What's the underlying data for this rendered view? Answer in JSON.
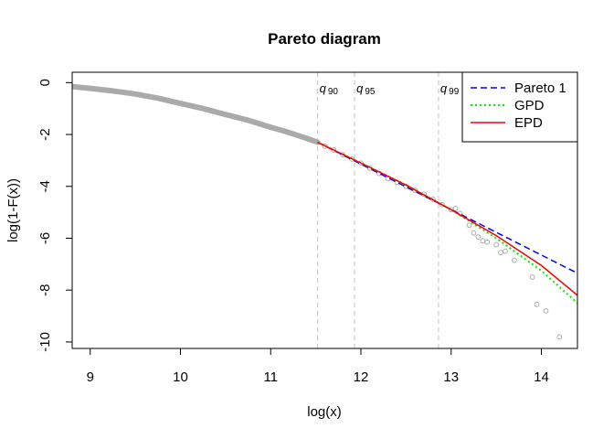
{
  "chart_data": {
    "type": "line",
    "title": "Pareto diagram",
    "xlabel": "log(x)",
    "ylabel": "log(1-F(x))",
    "xlim": [
      8.8,
      14.4
    ],
    "ylim": [
      -10.25,
      0.4
    ],
    "xticks": [
      9,
      10,
      11,
      12,
      13,
      14
    ],
    "yticks": [
      0,
      -2,
      -4,
      -6,
      -8,
      -10
    ],
    "grid": false,
    "legend_position": "top-right",
    "colors": {
      "empirical": "#aaaaaa",
      "quantile_lines": "#cccccc",
      "pareto1": "#0000ff",
      "gpd": "#00ee00",
      "epd": "#ff0000"
    },
    "empirical_curve": {
      "x": [
        8.8,
        9.0,
        9.25,
        9.5,
        9.75,
        10.0,
        10.25,
        10.5,
        10.75,
        11.0,
        11.2,
        11.4,
        11.52
      ],
      "y": [
        -0.15,
        -0.22,
        -0.32,
        -0.44,
        -0.6,
        -0.8,
        -1.0,
        -1.23,
        -1.45,
        -1.72,
        -1.92,
        -2.15,
        -2.3
      ]
    },
    "empirical_points": {
      "x": [
        11.6,
        11.7,
        11.8,
        11.9,
        12.0,
        12.1,
        12.2,
        12.3,
        12.4,
        12.5,
        12.6,
        12.7,
        12.8,
        12.9,
        13.0,
        13.05,
        13.1,
        13.2,
        13.25,
        13.3,
        13.35,
        13.4,
        13.5,
        13.55,
        13.6,
        13.7,
        13.9,
        13.95,
        14.05,
        14.2
      ],
      "y": [
        -2.45,
        -2.6,
        -2.78,
        -2.95,
        -3.1,
        -3.3,
        -3.5,
        -3.7,
        -3.85,
        -4.0,
        -4.15,
        -4.3,
        -4.5,
        -4.7,
        -4.9,
        -4.85,
        -5.05,
        -5.5,
        -5.8,
        -5.95,
        -6.1,
        -6.15,
        -6.25,
        -6.55,
        -6.5,
        -6.85,
        -7.5,
        -8.55,
        -8.8,
        -9.8
      ]
    },
    "series": [
      {
        "name": "Pareto 1",
        "x": [
          11.52,
          14.4
        ],
        "y": [
          -2.3,
          -7.35
        ]
      },
      {
        "name": "GPD",
        "x": [
          11.52,
          12.0,
          12.5,
          13.0,
          13.5,
          14.0,
          14.4
        ],
        "y": [
          -2.3,
          -3.1,
          -3.95,
          -4.9,
          -6.0,
          -7.25,
          -8.5
        ]
      },
      {
        "name": "EPD",
        "x": [
          11.52,
          12.0,
          12.5,
          13.0,
          13.5,
          14.0,
          14.4
        ],
        "y": [
          -2.3,
          -3.1,
          -3.95,
          -4.9,
          -5.9,
          -7.05,
          -8.2
        ]
      }
    ],
    "quantile_lines": [
      {
        "label": "q",
        "sub": "90",
        "x": 11.52
      },
      {
        "label": "q",
        "sub": "95",
        "x": 11.93
      },
      {
        "label": "q",
        "sub": "99",
        "x": 12.86
      }
    ]
  }
}
